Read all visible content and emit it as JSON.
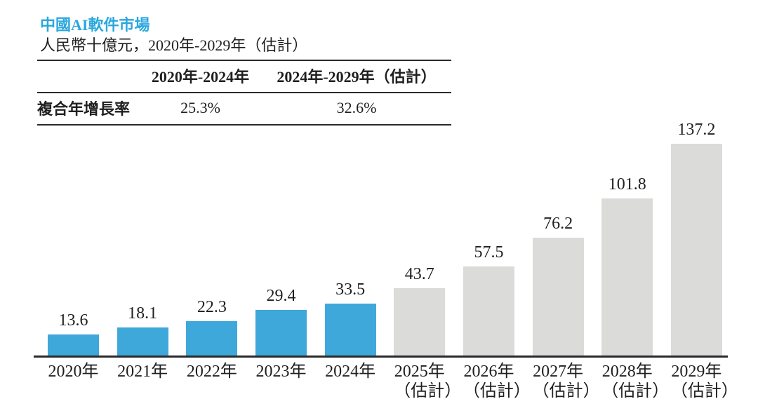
{
  "page": {
    "title": "中國AI軟件市場",
    "subtitle": "人民幣十億元，2020年-2029年（估計）"
  },
  "cagr_table": {
    "row_header": "複合年增長率",
    "col_headers": [
      "2020年-2024年",
      "2024年-2029年（估計）"
    ],
    "row_values": [
      "25.3%",
      "32.6%"
    ]
  },
  "chart_data": {
    "type": "bar",
    "title": "中國AI軟件市場",
    "ylabel": "人民幣十億元",
    "xlabel": "",
    "ylim": [
      0,
      140
    ],
    "grid": false,
    "legend": "none",
    "categories": [
      "2020年",
      "2021年",
      "2022年",
      "2023年",
      "2024年",
      "2025年（估計）",
      "2026年（估計）",
      "2027年（估計）",
      "2028年（估計）",
      "2029年（估計）"
    ],
    "values": [
      13.6,
      18.1,
      22.3,
      29.4,
      33.5,
      43.7,
      57.5,
      76.2,
      101.8,
      137.2
    ],
    "bars": [
      {
        "label": "2020年",
        "sublabel": "",
        "value": 13.6,
        "kind": "actual"
      },
      {
        "label": "2021年",
        "sublabel": "",
        "value": 18.1,
        "kind": "actual"
      },
      {
        "label": "2022年",
        "sublabel": "",
        "value": 22.3,
        "kind": "actual"
      },
      {
        "label": "2023年",
        "sublabel": "",
        "value": 29.4,
        "kind": "actual"
      },
      {
        "label": "2024年",
        "sublabel": "",
        "value": 33.5,
        "kind": "actual"
      },
      {
        "label": "2025年",
        "sublabel": "（估計）",
        "value": 43.7,
        "kind": "estimate"
      },
      {
        "label": "2026年",
        "sublabel": "（估計）",
        "value": 57.5,
        "kind": "estimate"
      },
      {
        "label": "2027年",
        "sublabel": "（估計）",
        "value": 76.2,
        "kind": "estimate"
      },
      {
        "label": "2028年",
        "sublabel": "（估計）",
        "value": 101.8,
        "kind": "estimate"
      },
      {
        "label": "2029年",
        "sublabel": "（估計）",
        "value": 137.2,
        "kind": "estimate"
      }
    ],
    "colors": {
      "actual": "#3FA8DB",
      "estimate": "#DBDBD9",
      "title": "#2BA7DF",
      "axis": "#2a2a2a"
    }
  }
}
